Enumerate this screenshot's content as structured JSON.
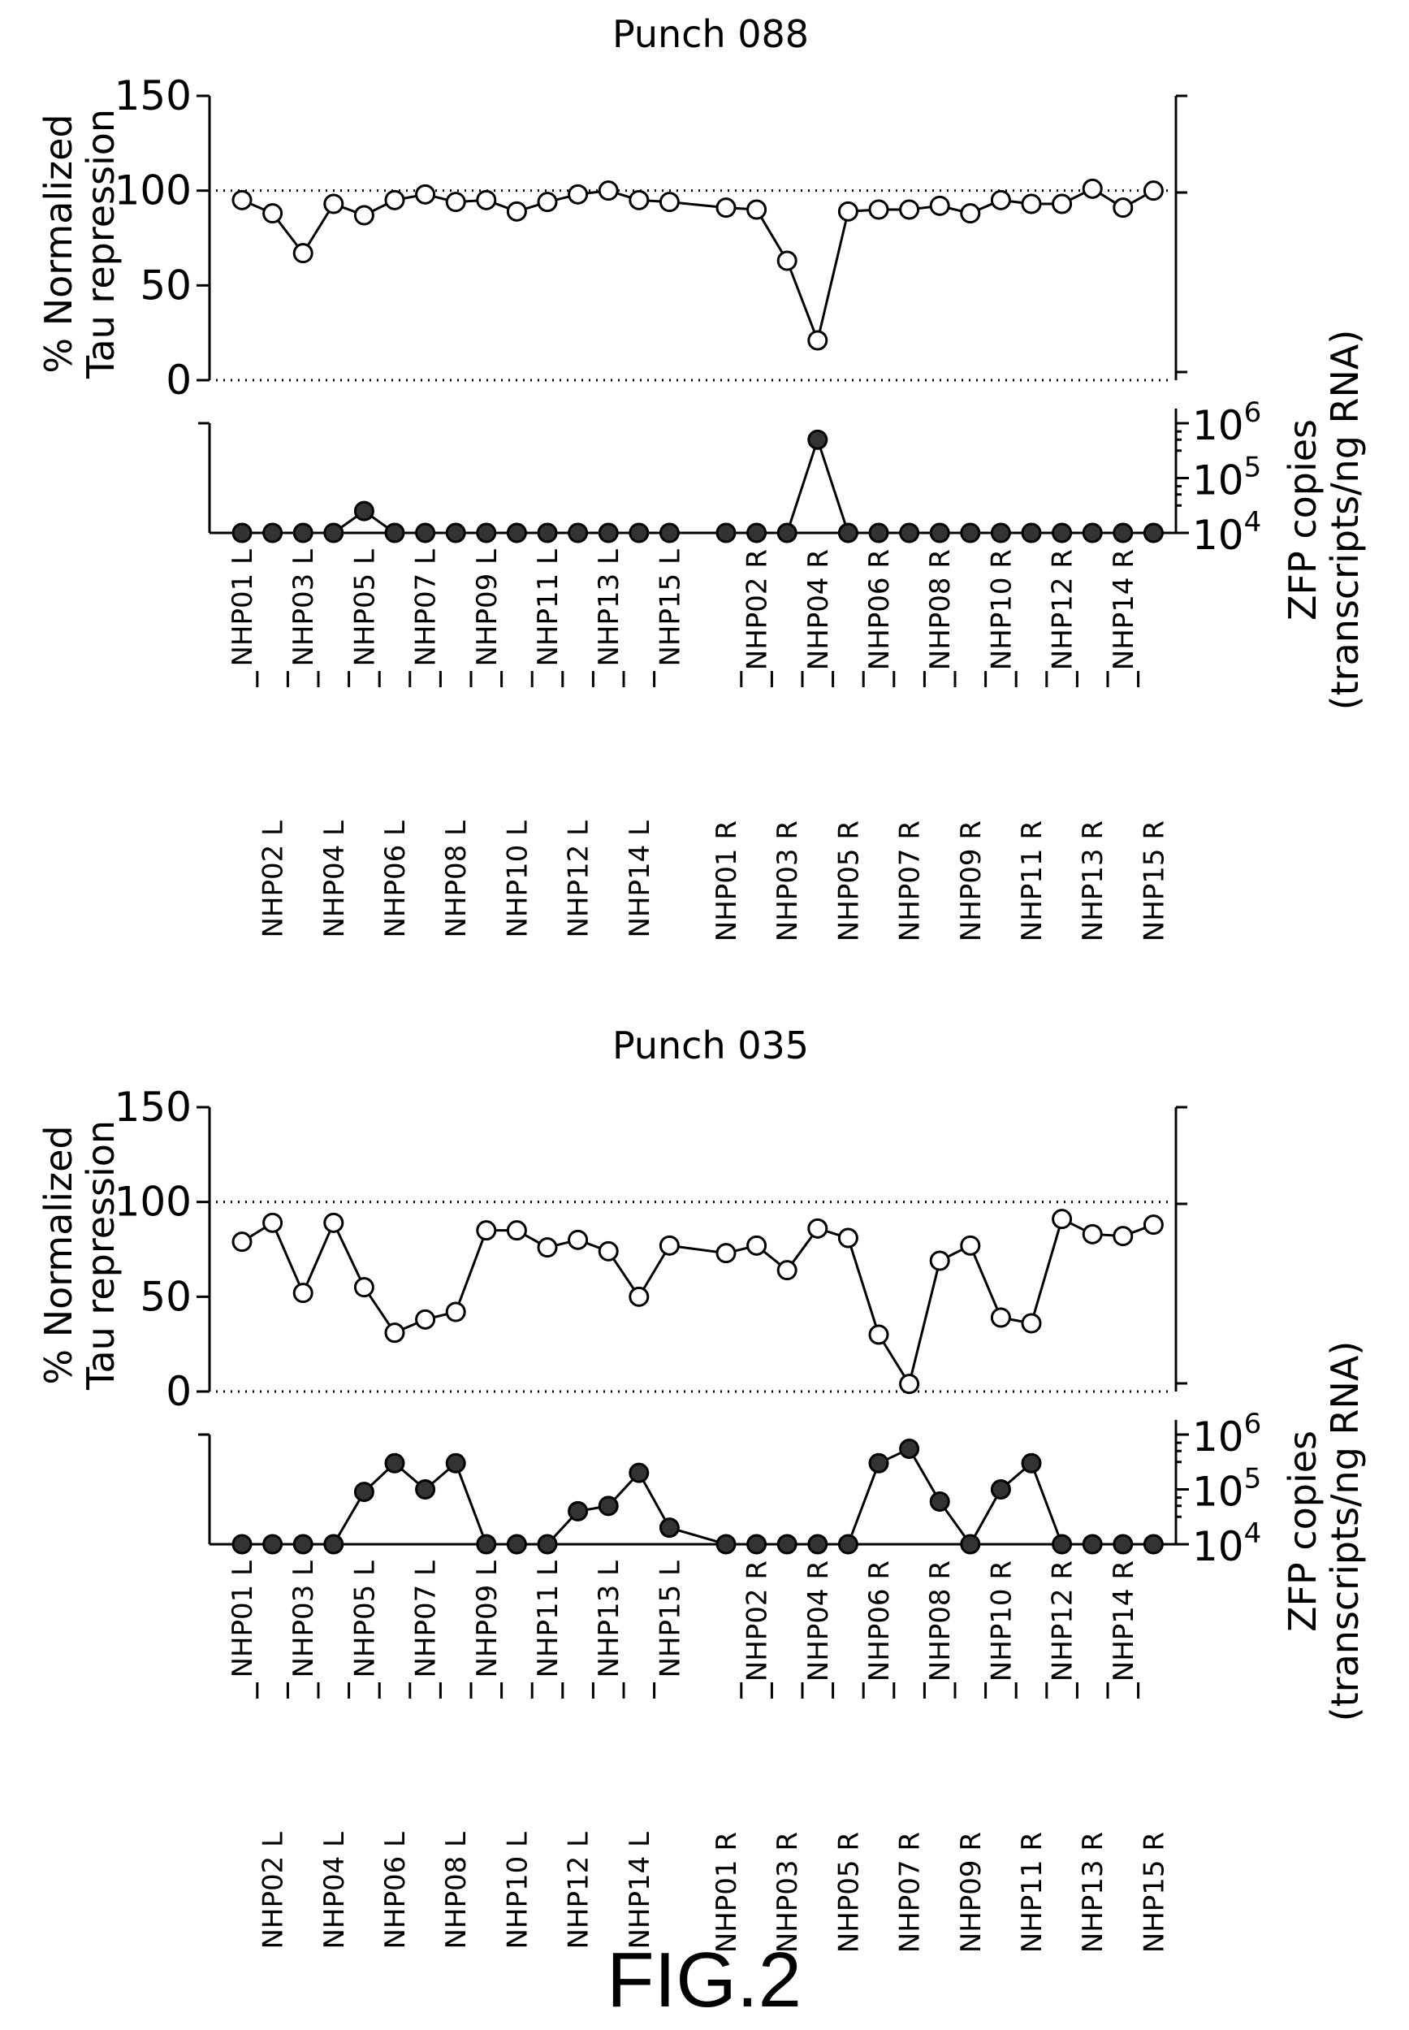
{
  "figure_label": "FIG.2",
  "chart_data": [
    {
      "type": "line",
      "title": "Punch 088",
      "ylabel_left": [
        "% Normalized",
        "Tau repression"
      ],
      "ylabel_right": [
        "ZFP copies",
        "(transcripts/ng RNA)"
      ],
      "categories": [
        "NHP01 L",
        "NHP02 L",
        "NHP03 L",
        "NHP04 L",
        "NHP05 L",
        "NHP06 L",
        "NHP07 L",
        "NHP08 L",
        "NHP09 L",
        "NHP10 L",
        "NHP11 L",
        "NHP12 L",
        "NHP13 L",
        "NHP14 L",
        "NHP15 L",
        "NHP01 R",
        "NHP02 R",
        "NHP03 R",
        "NHP04 R",
        "NHP05 R",
        "NHP06 R",
        "NHP07 R",
        "NHP08 R",
        "NHP09 R",
        "NHP10 R",
        "NHP11 R",
        "NHP12 R",
        "NHP13 R",
        "NHP14 R",
        "NHP15 R"
      ],
      "upper": {
        "ylim": [
          0,
          150
        ],
        "yticks": [
          "0",
          "50",
          "100",
          "150"
        ],
        "reference_lines": [
          0,
          100
        ],
        "marker": "open-circle",
        "values": [
          95,
          88,
          67,
          93,
          87,
          95,
          98,
          94,
          95,
          89,
          94,
          98,
          100,
          95,
          94,
          91,
          90,
          63,
          21,
          89,
          90,
          90,
          92,
          88,
          95,
          93,
          93,
          101,
          91,
          100
        ]
      },
      "lower": {
        "scale": "log",
        "ylim": [
          10000,
          1000000
        ],
        "yticks": [
          {
            "base": "10",
            "exp": "4"
          },
          {
            "base": "10",
            "exp": "5"
          },
          {
            "base": "10",
            "exp": "6"
          }
        ],
        "marker": "filled-circle",
        "values": [
          10000,
          10000,
          10000,
          10000,
          25000,
          10000,
          10000,
          10000,
          10000,
          10000,
          10000,
          10000,
          10000,
          10000,
          10000,
          10000,
          10000,
          10000,
          500000,
          10000,
          10000,
          10000,
          10000,
          10000,
          10000,
          10000,
          10000,
          10000,
          10000,
          10000
        ]
      }
    },
    {
      "type": "line",
      "title": "Punch 035",
      "ylabel_left": [
        "% Normalized",
        "Tau repression"
      ],
      "ylabel_right": [
        "ZFP copies",
        "(transcripts/ng RNA)"
      ],
      "categories": [
        "NHP01 L",
        "NHP02 L",
        "NHP03 L",
        "NHP04 L",
        "NHP05 L",
        "NHP06 L",
        "NHP07 L",
        "NHP08 L",
        "NHP09 L",
        "NHP10 L",
        "NHP11 L",
        "NHP12 L",
        "NHP13 L",
        "NHP14 L",
        "NHP15 L",
        "NHP01 R",
        "NHP02 R",
        "NHP03 R",
        "NHP04 R",
        "NHP05 R",
        "NHP06 R",
        "NHP07 R",
        "NHP08 R",
        "NHP09 R",
        "NHP10 R",
        "NHP11 R",
        "NHP12 R",
        "NHP13 R",
        "NHP14 R",
        "NHP15 R"
      ],
      "upper": {
        "ylim": [
          0,
          150
        ],
        "yticks": [
          "0",
          "50",
          "100",
          "150"
        ],
        "reference_lines": [
          0,
          100
        ],
        "marker": "open-circle",
        "values": [
          79,
          89,
          52,
          89,
          55,
          31,
          38,
          42,
          85,
          85,
          76,
          80,
          74,
          50,
          77,
          73,
          77,
          64,
          86,
          81,
          30,
          4,
          69,
          77,
          39,
          36,
          91,
          83,
          82,
          88
        ]
      },
      "lower": {
        "scale": "log",
        "ylim": [
          10000,
          1000000
        ],
        "yticks": [
          {
            "base": "10",
            "exp": "4"
          },
          {
            "base": "10",
            "exp": "5"
          },
          {
            "base": "10",
            "exp": "6"
          }
        ],
        "marker": "filled-circle",
        "values": [
          10000,
          10000,
          10000,
          10000,
          90000,
          300000,
          100000,
          300000,
          10000,
          10000,
          10000,
          40000,
          50000,
          200000,
          20000,
          10000,
          10000,
          10000,
          10000,
          10000,
          300000,
          550000,
          60000,
          10000,
          100000,
          300000,
          10000,
          10000,
          10000,
          10000
        ]
      }
    }
  ]
}
